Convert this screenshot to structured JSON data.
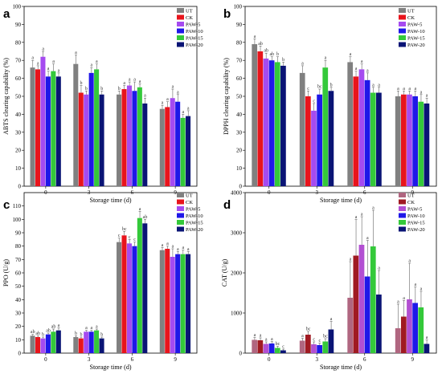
{
  "chart_data": [
    {
      "type": "bar",
      "panel_label": "a",
      "categories": [
        "0",
        "3",
        "6",
        "9"
      ],
      "xlabel": "Storage time (d)",
      "ylabel": "ABTS clearing capability (%)",
      "ylim": [
        0,
        100
      ],
      "yticks": [
        0,
        10,
        20,
        30,
        40,
        50,
        60,
        70,
        80,
        90,
        100
      ],
      "legend_position": "top-right",
      "series": [
        {
          "name": "UT",
          "color": "#808080",
          "values": [
            66,
            68,
            51,
            43
          ],
          "errors": [
            4,
            5,
            2,
            2
          ],
          "letters": [
            "a",
            "a",
            "b",
            "a"
          ]
        },
        {
          "name": "CK",
          "color": "#e8141c",
          "values": [
            65,
            52,
            54,
            44
          ],
          "errors": [
            2,
            4,
            2,
            3
          ],
          "letters": [
            "a",
            "b",
            "a",
            "a"
          ]
        },
        {
          "name": "PAW-5",
          "color": "#a54bf0",
          "values": [
            72,
            51,
            56,
            49
          ],
          "errors": [
            3,
            2,
            2,
            5
          ],
          "letters": [
            "a",
            "b",
            "a",
            "a"
          ]
        },
        {
          "name": "PAW-10",
          "color": "#1f18e8",
          "values": [
            61,
            63,
            53,
            47
          ],
          "errors": [
            3,
            3,
            5,
            4
          ],
          "letters": [
            "a",
            "a",
            "a",
            "a"
          ]
        },
        {
          "name": "PAW-15",
          "color": "#34c93a",
          "values": [
            64,
            65,
            55,
            38
          ],
          "errors": [
            4,
            3,
            2,
            2
          ],
          "letters": [
            "a",
            "a",
            "a",
            "a"
          ]
        },
        {
          "name": "PAW-20",
          "color": "#0a1475",
          "values": [
            61,
            51,
            46,
            39
          ],
          "errors": [
            2,
            2,
            3,
            3
          ],
          "letters": [
            "a",
            "b",
            "a",
            "a"
          ]
        }
      ]
    },
    {
      "type": "bar",
      "panel_label": "b",
      "categories": [
        "0",
        "3",
        "6",
        "9"
      ],
      "xlabel": "Storage time (d)",
      "ylabel": "DPPH clearing capability (%)",
      "ylim": [
        0,
        100
      ],
      "yticks": [
        0,
        10,
        20,
        30,
        40,
        50,
        60,
        70,
        80,
        90,
        100
      ],
      "legend_position": "top-right",
      "series": [
        {
          "name": "UT",
          "color": "#808080",
          "values": [
            79,
            63,
            69,
            50
          ],
          "errors": [
            3,
            4,
            3,
            3
          ],
          "letters": [
            "a",
            "a",
            "a",
            "a"
          ]
        },
        {
          "name": "CK",
          "color": "#e8141c",
          "values": [
            75,
            50,
            61,
            51
          ],
          "errors": [
            3,
            3,
            3,
            2
          ],
          "letters": [
            "ab",
            "c",
            "a",
            "a"
          ]
        },
        {
          "name": "PAW-5",
          "color": "#a54bf0",
          "values": [
            71,
            42,
            65,
            51
          ],
          "errors": [
            3,
            4,
            3,
            2
          ],
          "letters": [
            "ab",
            "c",
            "a",
            "a"
          ]
        },
        {
          "name": "PAW-10",
          "color": "#1f18e8",
          "values": [
            70,
            51,
            59,
            50
          ],
          "errors": [
            2,
            3,
            4,
            3
          ],
          "letters": [
            "ab",
            "bc",
            "a",
            "a"
          ]
        },
        {
          "name": "PAW-15",
          "color": "#34c93a",
          "values": [
            69,
            66,
            52,
            47
          ],
          "errors": [
            3,
            4,
            3,
            4
          ],
          "letters": [
            "b",
            "a",
            "a",
            "a"
          ]
        },
        {
          "name": "PAW-20",
          "color": "#0a1475",
          "values": [
            67,
            53,
            52,
            46
          ],
          "errors": [
            2,
            2,
            3,
            3
          ],
          "letters": [
            "b",
            "b",
            "a",
            "a"
          ]
        }
      ]
    },
    {
      "type": "bar",
      "panel_label": "c",
      "categories": [
        "0",
        "3",
        "6",
        "9"
      ],
      "xlabel": "Storage time (d)",
      "ylabel": "PPO (U/g)",
      "ylim": [
        0,
        120
      ],
      "yticks": [
        0,
        10,
        20,
        30,
        40,
        50,
        60,
        70,
        80,
        90,
        100,
        110
      ],
      "legend_position": "top-right",
      "series": [
        {
          "name": "UT",
          "color": "#808080",
          "values": [
            13,
            12,
            83,
            77
          ],
          "errors": [
            1,
            1,
            3,
            2
          ],
          "letters": [
            "ab",
            "b",
            "c",
            "a"
          ]
        },
        {
          "name": "CK",
          "color": "#e8141c",
          "values": [
            12,
            11,
            88,
            78
          ],
          "errors": [
            1,
            1,
            3,
            2
          ],
          "letters": [
            "ab",
            "b",
            "bc",
            "a"
          ]
        },
        {
          "name": "PAW-5",
          "color": "#a54bf0",
          "values": [
            11,
            16,
            82,
            72
          ],
          "errors": [
            1,
            1,
            3,
            6
          ],
          "letters": [
            "b",
            "a",
            "c",
            "a"
          ]
        },
        {
          "name": "PAW-10",
          "color": "#1f18e8",
          "values": [
            14,
            16,
            80,
            74
          ],
          "errors": [
            1,
            1,
            3,
            2
          ],
          "letters": [
            "ab",
            "a",
            "c",
            "a"
          ]
        },
        {
          "name": "PAW-15",
          "color": "#34c93a",
          "values": [
            16,
            17,
            101,
            74
          ],
          "errors": [
            2,
            1,
            5,
            3
          ],
          "letters": [
            "ab",
            "a",
            "a",
            "a"
          ]
        },
        {
          "name": "PAW-20",
          "color": "#0a1475",
          "values": [
            17,
            11,
            97,
            74
          ],
          "errors": [
            2,
            1,
            3,
            2
          ],
          "letters": [
            "a",
            "b",
            "ab",
            "a"
          ]
        }
      ]
    },
    {
      "type": "bar",
      "panel_label": "d",
      "categories": [
        "0",
        "3",
        "6",
        "9"
      ],
      "xlabel": "Storage time (d)",
      "ylabel": "CAT (U/g)",
      "ylim": [
        0,
        4000
      ],
      "yticks": [
        0,
        1000,
        2000,
        3000,
        4000
      ],
      "legend_position": "top-right",
      "series": [
        {
          "name": "UT",
          "color": "#b06680",
          "values": [
            330,
            310,
            1380,
            620
          ],
          "errors": [
            60,
            60,
            900,
            600
          ],
          "letters": [
            "a",
            "a",
            "a",
            "a"
          ]
        },
        {
          "name": "CK",
          "color": "#a01a22",
          "values": [
            320,
            460,
            2430,
            910
          ],
          "errors": [
            60,
            80,
            900,
            400
          ],
          "letters": [
            "a",
            "bc",
            "a",
            "a"
          ]
        },
        {
          "name": "PAW-5",
          "color": "#b24fd2",
          "values": [
            230,
            220,
            2700,
            1340
          ],
          "errors": [
            50,
            60,
            700,
            900
          ],
          "letters": [
            "a",
            "c",
            "a",
            "a"
          ]
        },
        {
          "name": "PAW-10",
          "color": "#1f18e8",
          "values": [
            240,
            200,
            1910,
            1250
          ],
          "errors": [
            50,
            50,
            900,
            400
          ],
          "letters": [
            "a",
            "c",
            "a",
            "a"
          ]
        },
        {
          "name": "PAW-15",
          "color": "#34c93a",
          "values": [
            130,
            290,
            2660,
            1140
          ],
          "errors": [
            40,
            70,
            900,
            400
          ],
          "letters": [
            "bc",
            "bc",
            "a",
            "a"
          ]
        },
        {
          "name": "PAW-20",
          "color": "#0a1475",
          "values": [
            70,
            590,
            1460,
            230
          ],
          "errors": [
            30,
            200,
            600,
            100
          ],
          "letters": [
            "c",
            "a",
            "a",
            "a"
          ]
        }
      ]
    }
  ]
}
